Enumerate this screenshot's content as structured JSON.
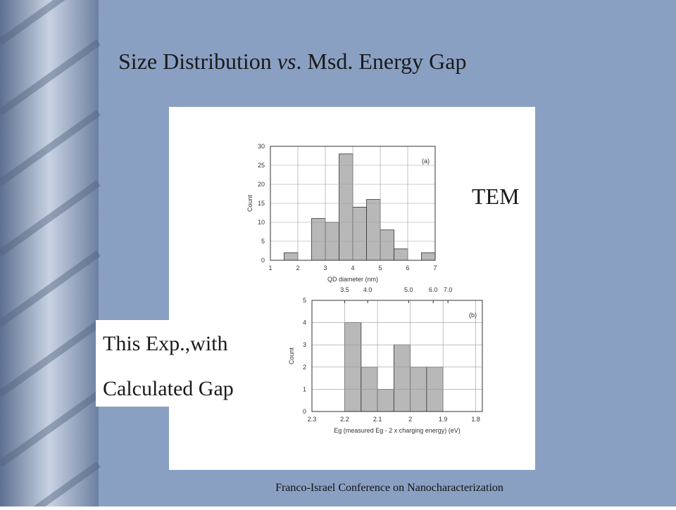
{
  "slide": {
    "title": [
      "Size Distribution ",
      "vs",
      ". Msd. Energy Gap"
    ],
    "tem_label": "TEM",
    "exp_label": [
      "This Exp.,with",
      "Calculated Gap"
    ],
    "footer": "Franco-Israel Conference on Nanocharacterization"
  },
  "chart_data": [
    {
      "type": "histogram",
      "annotation": "(a)",
      "xlabel": "QD diameter (nm)",
      "ylabel": "Count",
      "bins": [
        1,
        1.5,
        2,
        2.5,
        3,
        3.5,
        4,
        4.5,
        5,
        5.5,
        6,
        6.5,
        7
      ],
      "values": [
        0,
        2,
        0,
        11,
        10,
        28,
        14,
        16,
        8,
        3,
        0,
        2
      ],
      "xlim": [
        1,
        7
      ],
      "ylim": [
        0,
        30
      ],
      "xticks": [
        1,
        2,
        3,
        4,
        5,
        6,
        7
      ],
      "yticks": [
        0,
        5,
        10,
        15,
        20,
        25,
        30
      ],
      "grid": true,
      "color": "#b8b8b8"
    },
    {
      "type": "histogram",
      "annotation": "(b)",
      "xlabel": "Eg (measured Eg - 2 x charging energy) (eV)",
      "ylabel": "Count",
      "bins": [
        2.2,
        2.15,
        2.1,
        2.05,
        2,
        1.95,
        1.9
      ],
      "values": [
        4,
        2,
        1,
        3,
        2,
        2
      ],
      "xlim": [
        2.3,
        1.78
      ],
      "ylim": [
        0,
        5
      ],
      "xticks": [
        2.3,
        2.2,
        2.1,
        2,
        1.9,
        1.8
      ],
      "x2ticks": [
        {
          "value": 2.2,
          "label": "3.5"
        },
        {
          "value": 2.13,
          "label": "4.0"
        },
        {
          "value": 2.005,
          "label": "5.0"
        },
        {
          "value": 1.93,
          "label": "6.0"
        },
        {
          "value": 1.885,
          "label": "7.0"
        }
      ],
      "yticks": [
        0,
        1,
        2,
        3,
        4,
        5
      ],
      "grid": true,
      "color": "#b8b8b8"
    }
  ]
}
